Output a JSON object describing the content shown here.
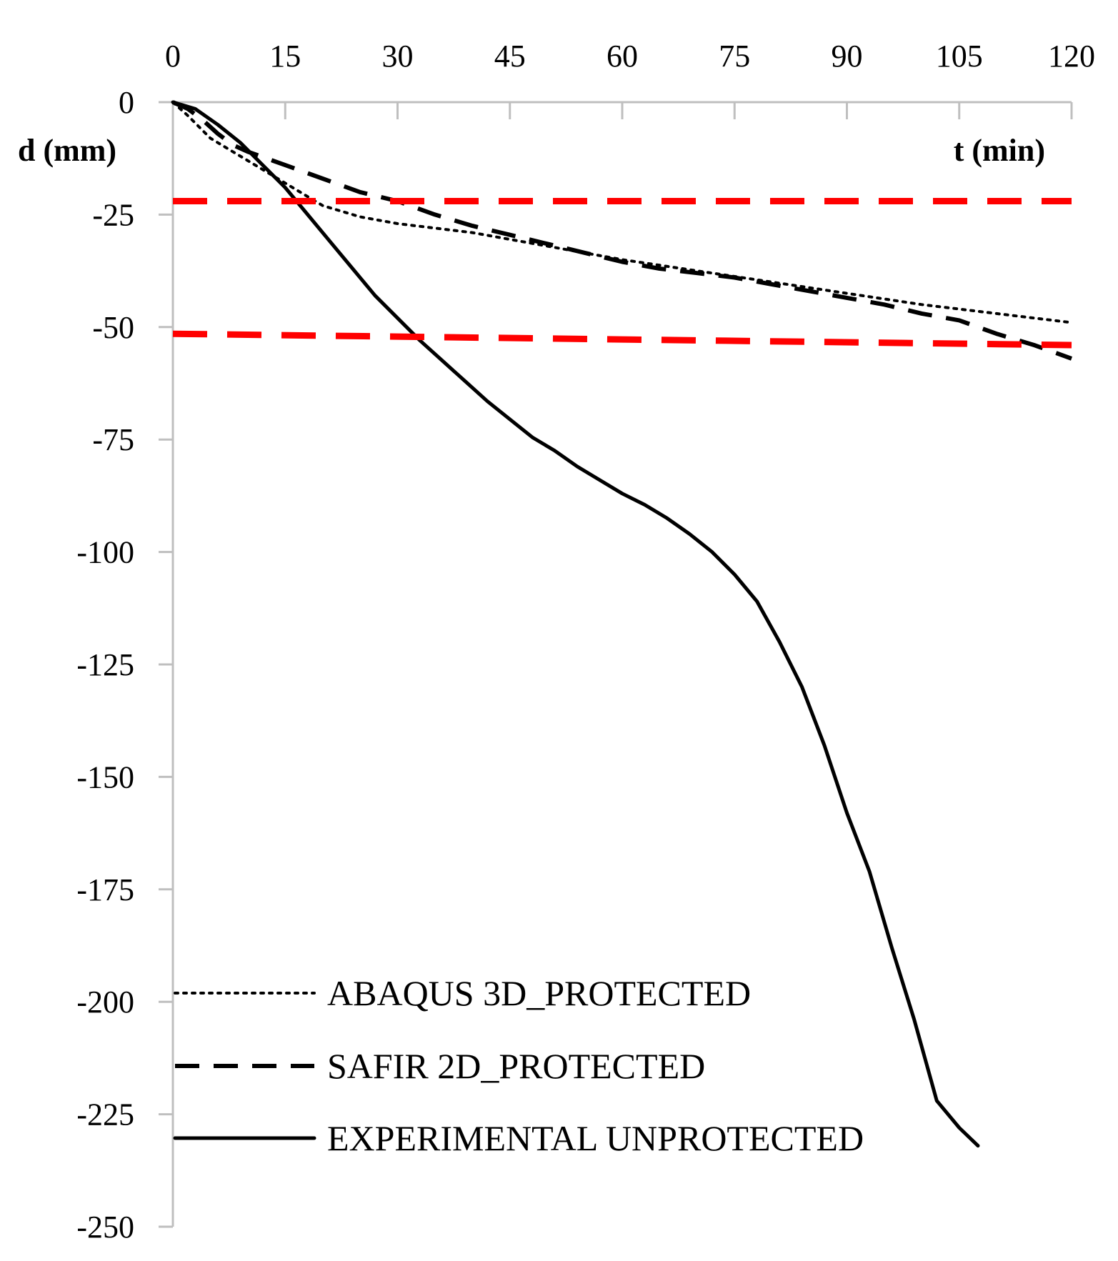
{
  "chart_data": {
    "type": "line",
    "xlabel": "t (min)",
    "ylabel": "d (mm)",
    "xlim": [
      0,
      120
    ],
    "ylim": [
      -250,
      0
    ],
    "x_ticks": [
      0,
      15,
      30,
      45,
      60,
      75,
      90,
      105,
      120
    ],
    "y_ticks": [
      0,
      -25,
      -50,
      -75,
      -100,
      -125,
      -150,
      -175,
      -200,
      -225,
      -250
    ],
    "x_axis_position": "top",
    "grid": false,
    "legend_position": "bottom-left",
    "series": [
      {
        "name": "ABAQUS 3D_PROTECTED",
        "style": "dotted",
        "color": "#000000",
        "x": [
          0,
          2,
          5,
          8,
          11,
          14,
          17,
          20,
          25,
          30,
          35,
          40,
          50,
          60,
          70,
          80,
          90,
          100,
          110,
          120
        ],
        "y": [
          0,
          -3,
          -8,
          -11,
          -14,
          -17,
          -20,
          -23,
          -25.5,
          -27,
          -28,
          -29,
          -32,
          -35,
          -37.5,
          -40,
          -42.5,
          -45,
          -47,
          -49
        ]
      },
      {
        "name": "SAFIR 2D_PROTECTED",
        "style": "dashed",
        "color": "#000000",
        "x": [
          0,
          2,
          4,
          6,
          8,
          10,
          15,
          20,
          25,
          30,
          35,
          40,
          45,
          50,
          55,
          60,
          65,
          70,
          75,
          80,
          85,
          90,
          95,
          100,
          105,
          110,
          115,
          120
        ],
        "y": [
          0,
          -1.5,
          -4,
          -7,
          -9.5,
          -11,
          -14,
          -17,
          -20,
          -22,
          -25,
          -27.5,
          -29.5,
          -31.5,
          -33.5,
          -35.5,
          -37,
          -38,
          -39,
          -40.5,
          -42,
          -43.5,
          -45,
          -47,
          -48.5,
          -51.5,
          -54,
          -57
        ]
      },
      {
        "name": "EXPERIMENTAL UNPROTECTED",
        "style": "solid",
        "color": "#000000",
        "x": [
          0,
          3,
          6,
          9,
          12,
          15,
          18,
          21,
          24,
          27,
          30,
          33,
          36,
          39,
          42,
          45,
          48,
          51,
          54,
          57,
          60,
          63,
          66,
          69,
          72,
          75,
          78,
          81,
          84,
          87,
          90,
          93,
          96,
          99,
          102,
          105,
          107.5
        ],
        "y": [
          0,
          -1.5,
          -5,
          -9,
          -14,
          -19,
          -25,
          -31,
          -37,
          -43,
          -48,
          -53,
          -57.5,
          -62,
          -66.5,
          -70.5,
          -74.5,
          -77.5,
          -81,
          -84,
          -87,
          -89.5,
          -92.5,
          -96,
          -100,
          -105,
          -111,
          -120,
          -130,
          -143,
          -158,
          -171,
          -188,
          -204,
          -222,
          -228,
          -232
        ]
      },
      {
        "name": "",
        "style": "dashed-red",
        "color": "#ff0000",
        "x": [
          0,
          120
        ],
        "y": [
          -22,
          -22
        ]
      },
      {
        "name": "",
        "style": "dashed-red",
        "color": "#ff0000",
        "x": [
          0,
          120
        ],
        "y": [
          -51.5,
          -54
        ]
      }
    ]
  }
}
